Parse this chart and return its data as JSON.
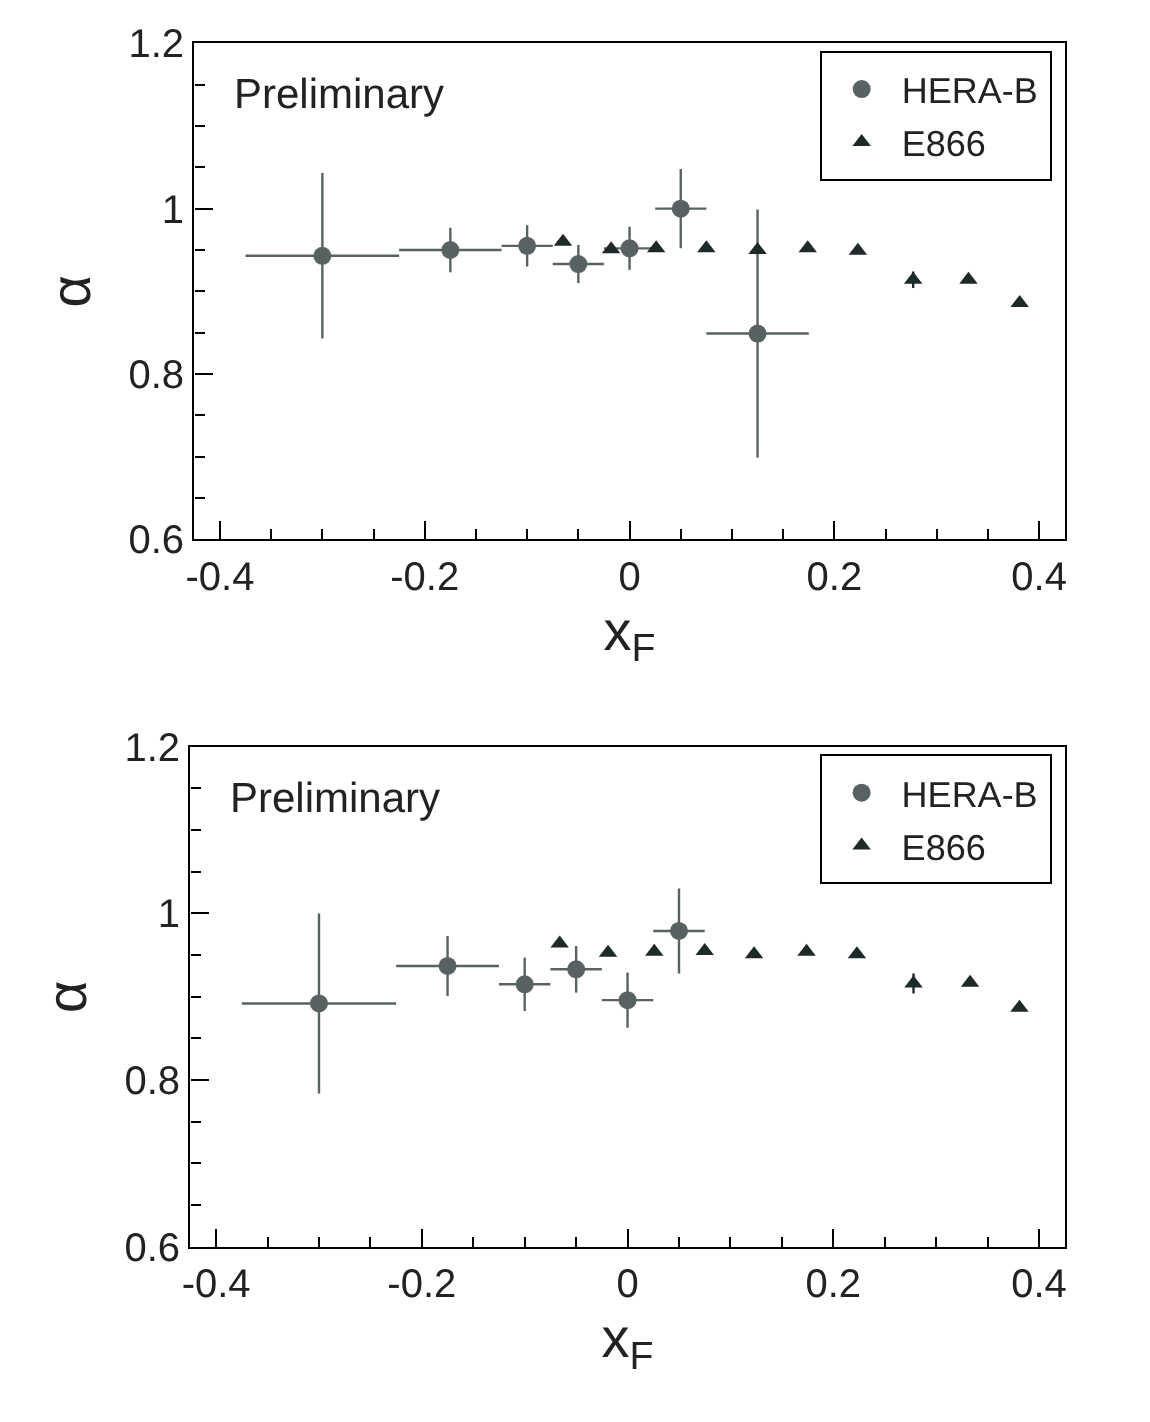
{
  "chart_data": [
    {
      "type": "scatter",
      "xlabel": "x$_{F}$",
      "ylabel": "α",
      "annotations": [
        "Preliminary"
      ],
      "legend": "top right",
      "xlim": [
        -0.425,
        0.425
      ],
      "ylim": [
        0.6,
        1.2
      ],
      "xticks": [
        -0.4,
        {
          "value": -0.35,
          "label": null
        },
        {
          "value": -0.3,
          "label": null
        },
        {
          "value": -0.25,
          "label": null
        },
        -0.2,
        {
          "value": -0.15,
          "label": null
        },
        {
          "value": -0.1,
          "label": null
        },
        {
          "value": -0.05,
          "label": null
        },
        0,
        {
          "value": 0.05,
          "label": null
        },
        {
          "value": 0.1,
          "label": null
        },
        {
          "value": 0.15,
          "label": null
        },
        0.2,
        {
          "value": 0.25,
          "label": null
        },
        {
          "value": 0.3,
          "label": null
        },
        {
          "value": 0.35,
          "label": null
        },
        0.4
      ],
      "yticks": [
        0.6,
        {
          "value": 0.65,
          "label": null
        },
        {
          "value": 0.7,
          "label": null
        },
        {
          "value": 0.75,
          "label": null
        },
        0.8,
        {
          "value": 0.85,
          "label": null
        },
        {
          "value": 0.9,
          "label": null
        },
        {
          "value": 0.95,
          "label": null
        },
        1,
        {
          "value": 1.05,
          "label": null
        },
        {
          "value": 1.1,
          "label": null
        },
        {
          "value": 1.15,
          "label": null
        },
        1.2
      ],
      "series": [
        {
          "name": "HERA-B",
          "color": "#586262",
          "marker": "circle",
          "x": [
            -0.3,
            -0.175,
            -0.1,
            -0.05,
            0,
            0.05,
            0.125
          ],
          "values": [
            0.943,
            0.95,
            0.955,
            0.933,
            0.952,
            1.0,
            0.849
          ],
          "errors": [
            0.1,
            0.027,
            0.025,
            0.023,
            0.026,
            0.048,
            0.15
          ],
          "xerrors": [
            0.075,
            0.05,
            0.025,
            0.025,
            0.025,
            0.025,
            0.05
          ]
        },
        {
          "name": "E866",
          "color": "#1e2a2a",
          "marker": "triangle",
          "x": [
            -0.065,
            -0.018,
            0.026,
            0.075,
            0.125,
            0.174,
            0.223,
            0.277,
            0.331,
            0.381
          ],
          "values": [
            0.96,
            0.951,
            0.952,
            0.952,
            0.95,
            0.952,
            0.949,
            0.914,
            0.914,
            0.886
          ],
          "errors": [
            null,
            null,
            null,
            null,
            null,
            null,
            null,
            0.01,
            null,
            null
          ]
        }
      ]
    },
    {
      "type": "scatter",
      "xlabel": "x$_{F}$",
      "ylabel": "α",
      "annotations": [
        "Preliminary"
      ],
      "legend": "top right",
      "xlim": [
        -0.425,
        0.425
      ],
      "ylim": [
        0.6,
        1.2
      ],
      "xticks": [
        -0.4,
        {
          "value": -0.35,
          "label": null
        },
        {
          "value": -0.3,
          "label": null
        },
        {
          "value": -0.25,
          "label": null
        },
        -0.2,
        {
          "value": -0.15,
          "label": null
        },
        {
          "value": -0.1,
          "label": null
        },
        {
          "value": -0.05,
          "label": null
        },
        0,
        {
          "value": 0.05,
          "label": null
        },
        {
          "value": 0.1,
          "label": null
        },
        {
          "value": 0.15,
          "label": null
        },
        0.2,
        {
          "value": 0.25,
          "label": null
        },
        {
          "value": 0.3,
          "label": null
        },
        {
          "value": 0.35,
          "label": null
        },
        0.4
      ],
      "yticks": [
        0.6,
        {
          "value": 0.65,
          "label": null
        },
        {
          "value": 0.7,
          "label": null
        },
        {
          "value": 0.75,
          "label": null
        },
        0.8,
        {
          "value": 0.85,
          "label": null
        },
        {
          "value": 0.9,
          "label": null
        },
        {
          "value": 0.95,
          "label": null
        },
        1,
        {
          "value": 1.05,
          "label": null
        },
        {
          "value": 1.1,
          "label": null
        },
        {
          "value": 1.15,
          "label": null
        },
        1.2
      ],
      "series": [
        {
          "name": "HERA-B",
          "color": "#586262",
          "marker": "circle",
          "x": [
            -0.3,
            -0.175,
            -0.1,
            -0.05,
            0,
            0.05
          ],
          "values": [
            0.892,
            0.937,
            0.915,
            0.933,
            0.896,
            0.979
          ],
          "errors": [
            0.108,
            0.036,
            0.032,
            0.028,
            0.033,
            0.051
          ],
          "xerrors": [
            0.075,
            0.05,
            0.025,
            0.025,
            0.025,
            0.025
          ]
        },
        {
          "name": "E866",
          "color": "#1e2a2a",
          "marker": "triangle",
          "x": [
            -0.066,
            -0.019,
            0.026,
            0.075,
            0.123,
            0.174,
            0.223,
            0.278,
            0.333,
            0.381
          ],
          "values": [
            0.964,
            0.953,
            0.954,
            0.955,
            0.951,
            0.954,
            0.951,
            0.916,
            0.917,
            0.887
          ],
          "errors": [
            null,
            null,
            null,
            null,
            null,
            null,
            null,
            0.012,
            null,
            null
          ]
        }
      ]
    }
  ]
}
